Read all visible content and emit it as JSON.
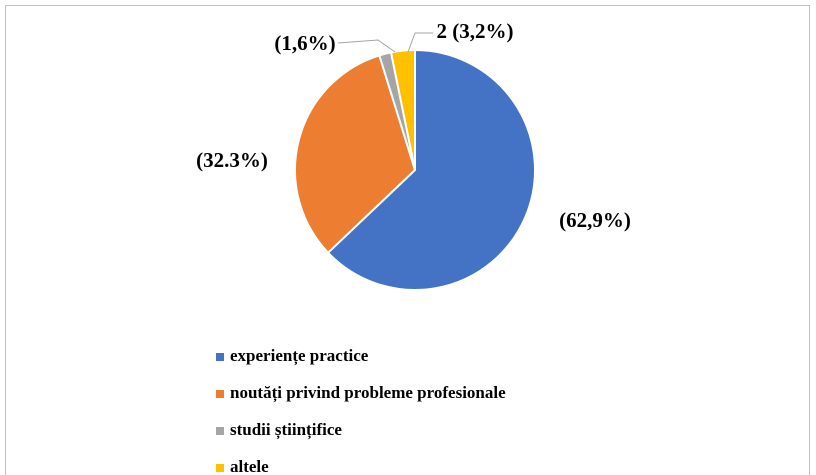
{
  "chart_data": {
    "type": "pie",
    "categories": [
      "experiențe practice",
      "noutăți privind probleme profesionale",
      "studii științifice",
      "altele"
    ],
    "values": [
      62.9,
      32.3,
      1.6,
      3.2
    ],
    "value_labels": [
      "(62,9%)",
      "(32.3%)",
      "(1,6%)",
      "2 (3,2%)"
    ],
    "colors": [
      "#4472c4",
      "#ed7d31",
      "#a5a5a5",
      "#ffc000"
    ],
    "legend": "bottom"
  }
}
